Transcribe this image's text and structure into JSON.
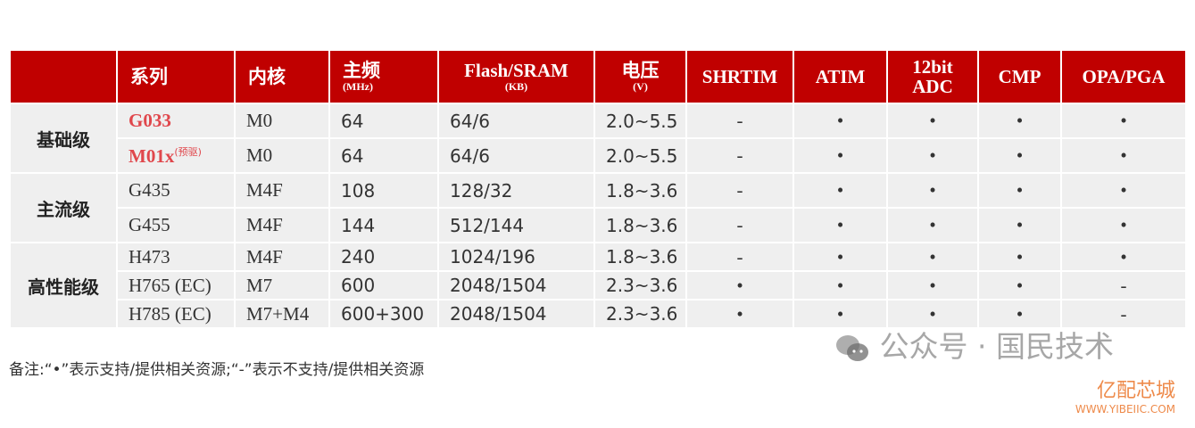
{
  "table": {
    "headers": [
      {
        "main": "",
        "sub": ""
      },
      {
        "main": "系列",
        "sub": ""
      },
      {
        "main": "内核",
        "sub": ""
      },
      {
        "main": "主频",
        "sub": "(MHz)"
      },
      {
        "main": "Flash/SRAM",
        "sub": "(KB)"
      },
      {
        "main": "电压",
        "sub": "(V)"
      },
      {
        "main": "SHRTIM",
        "sub": ""
      },
      {
        "main": "ATIM",
        "sub": ""
      },
      {
        "main": "12bit",
        "sub": "ADC"
      },
      {
        "main": "CMP",
        "sub": ""
      },
      {
        "main": "OPA/PGA",
        "sub": ""
      }
    ],
    "groups": [
      {
        "label": "基础级",
        "rows": [
          {
            "series": "G033",
            "series_note": "",
            "core": "M0",
            "freq": "64",
            "mem": "64/6",
            "volt": "2.0~5.5",
            "shrtim": "-",
            "atim": "•",
            "adc": "•",
            "cmp": "•",
            "opa": "•"
          },
          {
            "series": "M01x",
            "series_note": "(预驱)",
            "core": "M0",
            "freq": "64",
            "mem": "64/6",
            "volt": "2.0~5.5",
            "shrtim": "-",
            "atim": "•",
            "adc": "•",
            "cmp": "•",
            "opa": "•"
          }
        ]
      },
      {
        "label": "主流级",
        "rows": [
          {
            "series": "G435",
            "core": "M4F",
            "freq": "108",
            "mem": "128/32",
            "volt": "1.8~3.6",
            "shrtim": "-",
            "atim": "•",
            "adc": "•",
            "cmp": "•",
            "opa": "•"
          },
          {
            "series": "G455",
            "core": "M4F",
            "freq": "144",
            "mem": "512/144",
            "volt": "1.8~3.6",
            "shrtim": "-",
            "atim": "•",
            "adc": "•",
            "cmp": "•",
            "opa": "•"
          }
        ]
      },
      {
        "label": "高性能级",
        "rows": [
          {
            "series": "H473",
            "core": "M4F",
            "freq": "240",
            "mem": "1024/196",
            "volt": "1.8~3.6",
            "shrtim": "-",
            "atim": "•",
            "adc": "•",
            "cmp": "•",
            "opa": "•"
          },
          {
            "series": "H765 (EC)",
            "core": "M7",
            "freq": "600",
            "mem": "2048/1504",
            "volt": "2.3~3.6",
            "shrtim": "•",
            "atim": "•",
            "adc": "•",
            "cmp": "•",
            "opa": "-"
          },
          {
            "series": "H785 (EC)",
            "core": "M7+M4",
            "freq": "600+300",
            "mem": "2048/1504",
            "volt": "2.3~3.6",
            "shrtim": "•",
            "atim": "•",
            "adc": "•",
            "cmp": "•",
            "opa": "-"
          }
        ]
      }
    ]
  },
  "note": "备注:“•”表示支持/提供相关资源;“-”表示不支持/提供相关资源",
  "watermark": "公众号 · 国民技术",
  "brand": {
    "name": "亿配芯城",
    "url": "WWW.YIBEIIC.COM"
  },
  "colors": {
    "header": "#c00000",
    "highlight": "#e0474c",
    "body": "#efefef"
  }
}
